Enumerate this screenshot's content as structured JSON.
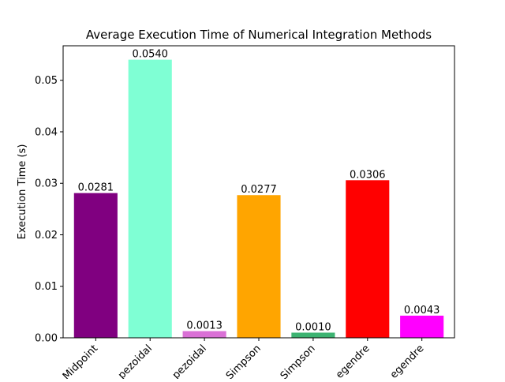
{
  "chart_data": {
    "type": "bar",
    "title": "Average Execution Time of Numerical Integration Methods",
    "xlabel": "",
    "ylabel": "Execution Time (s)",
    "categories": [
      "Midpoint",
      "Trapezoidal",
      "Trapezoidal",
      "Simpson",
      "Simpson",
      "Legendre",
      "Legendre"
    ],
    "visible_tick_labels": [
      "Midpoint",
      "pezoidal",
      "pezoidal",
      "Simpson",
      "Simpson",
      "egendre",
      "egendre"
    ],
    "values": [
      0.0281,
      0.054,
      0.0013,
      0.0277,
      0.001,
      0.0306,
      0.0043
    ],
    "value_labels": [
      "0.0281",
      "0.0540",
      "0.0013",
      "0.0277",
      "0.0010",
      "0.0306",
      "0.0043"
    ],
    "colors": [
      "#800080",
      "#7fffd4",
      "#da70d6",
      "#ffa500",
      "#3cb371",
      "#ff0000",
      "#ff00ff"
    ],
    "ylim": [
      0,
      0.0567
    ],
    "yticks": [
      0.0,
      0.01,
      0.02,
      0.03,
      0.04,
      0.05
    ],
    "ytick_labels": [
      "0.00",
      "0.01",
      "0.02",
      "0.03",
      "0.04",
      "0.05"
    ],
    "grid": false,
    "legend": "none"
  }
}
